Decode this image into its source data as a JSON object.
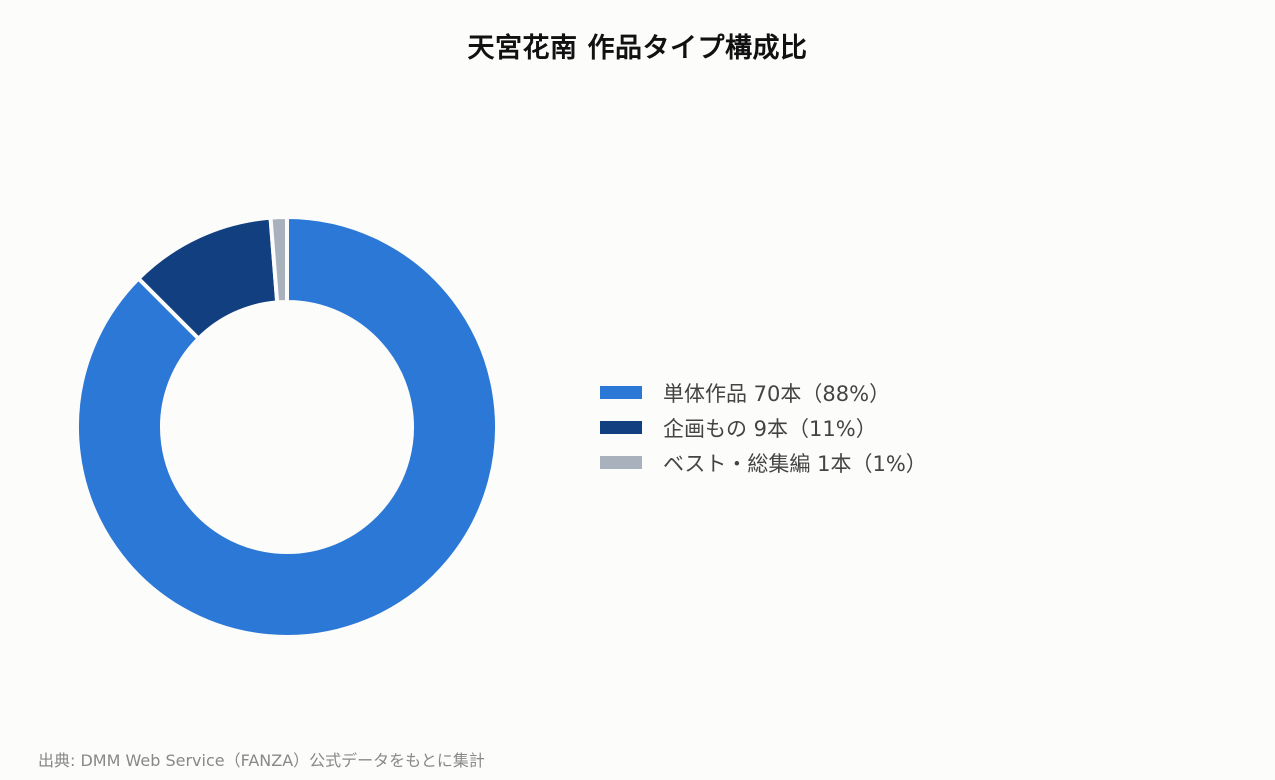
{
  "chart_data": {
    "type": "pie",
    "title": "天宮花南 作品タイプ構成比",
    "categories": [
      "単体作品",
      "企画もの",
      "ベスト・総集編"
    ],
    "values": [
      70,
      9,
      1
    ],
    "percentages": [
      88,
      11,
      1
    ],
    "unit": "本",
    "legend_labels": [
      "単体作品 70本（88%）",
      "企画もの 9本（11%）",
      "ベスト・総集編 1本（1%）"
    ],
    "colors": [
      "#2b78d6",
      "#113f80",
      "#a9b1bd"
    ],
    "legend_position": "right",
    "donut": true
  },
  "footer": {
    "source": "出典: DMM Web Service（FANZA）公式データをもとに集計"
  }
}
